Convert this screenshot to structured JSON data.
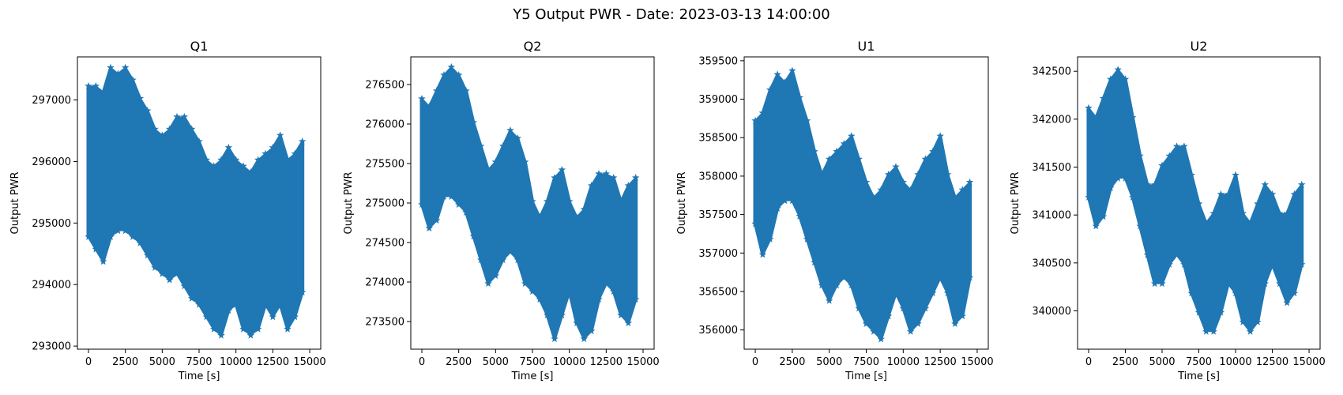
{
  "figure": {
    "suptitle": "Y5 Output PWR - Date: 2023-03-13 14:00:00"
  },
  "colors": {
    "series": "#1f77b4",
    "axes": "#000000",
    "background": "#ffffff"
  },
  "chart_data": [
    {
      "type": "scatter",
      "marker": "star",
      "title": "Q1",
      "xlabel": "Time [s]",
      "ylabel": "Output PWR",
      "xlim": [
        -750,
        15750
      ],
      "ylim": [
        292950,
        297700
      ],
      "xticks": [
        0,
        2500,
        5000,
        7500,
        10000,
        12500,
        15000
      ],
      "yticks": [
        293000,
        294000,
        295000,
        296000,
        297000
      ],
      "grid": false,
      "series": [
        {
          "x": [
            0,
            500,
            1000,
            1500,
            2000,
            2500,
            3000,
            3500,
            4000,
            4500,
            5000,
            5500,
            6000,
            6500,
            7000,
            7500,
            8000,
            8500,
            9000,
            9500,
            10000,
            10500,
            11000,
            11500,
            12000,
            12500,
            13000,
            13500,
            14000,
            14500
          ],
          "ymax": [
            297200,
            297200,
            297100,
            297500,
            297400,
            297500,
            297300,
            297000,
            296800,
            296500,
            296400,
            296500,
            296700,
            296700,
            296500,
            296300,
            296000,
            295900,
            296000,
            296200,
            296000,
            295900,
            295800,
            296000,
            296100,
            296200,
            296400,
            296000,
            296100,
            296300
          ],
          "ymin": [
            294800,
            294600,
            294400,
            294800,
            294900,
            294900,
            294800,
            294700,
            294500,
            294300,
            294200,
            294100,
            294200,
            294000,
            293800,
            293700,
            293500,
            293300,
            293200,
            293600,
            293700,
            293300,
            293200,
            293300,
            293700,
            293500,
            293700,
            293300,
            293500,
            293900
          ]
        }
      ]
    },
    {
      "type": "scatter",
      "marker": "star",
      "title": "Q2",
      "xlabel": "Time [s]",
      "ylabel": "Output PWR",
      "xlim": [
        -750,
        15750
      ],
      "ylim": [
        273150,
        276850
      ],
      "xticks": [
        0,
        2500,
        5000,
        7500,
        10000,
        12500,
        15000
      ],
      "yticks": [
        273500,
        274000,
        274500,
        275000,
        275500,
        276000,
        276500
      ],
      "grid": false,
      "series": [
        {
          "x": [
            0,
            500,
            1000,
            1500,
            2000,
            2500,
            3000,
            3500,
            4000,
            4500,
            5000,
            5500,
            6000,
            6500,
            7000,
            7500,
            8000,
            8500,
            9000,
            9500,
            10000,
            10500,
            11000,
            11500,
            12000,
            12500,
            13000,
            13500,
            14000,
            14500
          ],
          "ymax": [
            276300,
            276200,
            276400,
            276600,
            276700,
            276600,
            276400,
            276000,
            275700,
            275400,
            275500,
            275700,
            275900,
            275800,
            275500,
            275000,
            274800,
            275000,
            275300,
            275400,
            275000,
            274800,
            274900,
            275200,
            275350,
            275350,
            275300,
            275000,
            275200,
            275300
          ],
          "ymin": [
            275000,
            274700,
            274800,
            275100,
            275100,
            275000,
            274900,
            274600,
            274300,
            274000,
            274100,
            274300,
            274400,
            274300,
            274000,
            273900,
            273800,
            273600,
            273300,
            273600,
            273900,
            273500,
            273300,
            273400,
            273800,
            274000,
            273900,
            273600,
            273500,
            273800
          ]
        }
      ]
    },
    {
      "type": "scatter",
      "marker": "star",
      "title": "U1",
      "xlabel": "Time [s]",
      "ylabel": "Output PWR",
      "xlim": [
        -750,
        15750
      ],
      "ylim": [
        355750,
        359550
      ],
      "xticks": [
        0,
        2500,
        5000,
        7500,
        10000,
        12500,
        15000
      ],
      "yticks": [
        356000,
        356500,
        357000,
        357500,
        358000,
        358500,
        359000,
        359500
      ],
      "grid": false,
      "series": [
        {
          "x": [
            0,
            500,
            1000,
            1500,
            2000,
            2500,
            3000,
            3500,
            4000,
            4500,
            5000,
            5500,
            6000,
            6500,
            7000,
            7500,
            8000,
            8500,
            9000,
            9500,
            10000,
            10500,
            11000,
            11500,
            12000,
            12500,
            13000,
            13500,
            14000,
            14500
          ],
          "ymax": [
            358700,
            358800,
            359100,
            359300,
            359200,
            359350,
            359000,
            358700,
            358300,
            358000,
            358200,
            358300,
            358400,
            358500,
            358200,
            357900,
            357700,
            357800,
            358000,
            358100,
            357900,
            357800,
            358000,
            358200,
            358300,
            358500,
            358000,
            357700,
            357800,
            357900
          ],
          "ymin": [
            357400,
            357000,
            357200,
            357600,
            357700,
            357700,
            357500,
            357200,
            356900,
            356600,
            356400,
            356600,
            356700,
            356600,
            356300,
            356100,
            356000,
            355900,
            356200,
            356500,
            356300,
            356000,
            356100,
            356300,
            356500,
            356700,
            356500,
            356100,
            356200,
            356700
          ]
        }
      ]
    },
    {
      "type": "scatter",
      "marker": "star",
      "title": "U2",
      "xlabel": "Time [s]",
      "ylabel": "Output PWR",
      "xlim": [
        -750,
        15750
      ],
      "ylim": [
        339600,
        342650
      ],
      "xticks": [
        0,
        2500,
        5000,
        7500,
        10000,
        12500,
        15000
      ],
      "yticks": [
        340000,
        340500,
        341000,
        341500,
        342000,
        342500
      ],
      "grid": false,
      "series": [
        {
          "x": [
            0,
            500,
            1000,
            1500,
            2000,
            2500,
            3000,
            3500,
            4000,
            4500,
            5000,
            5500,
            6000,
            6500,
            7000,
            7500,
            8000,
            8500,
            9000,
            9500,
            10000,
            10500,
            11000,
            11500,
            12000,
            12500,
            13000,
            13500,
            14000,
            14500
          ],
          "ymax": [
            342100,
            342000,
            342200,
            342400,
            342500,
            342400,
            342000,
            341600,
            341300,
            341300,
            341500,
            341600,
            341700,
            341700,
            341400,
            341100,
            340900,
            341000,
            341200,
            341200,
            341400,
            341000,
            340900,
            341100,
            341300,
            341200,
            341000,
            341000,
            341200,
            341300
          ],
          "ymin": [
            341200,
            340900,
            341000,
            341300,
            341400,
            341400,
            341200,
            340900,
            340600,
            340300,
            340300,
            340500,
            340600,
            340500,
            340200,
            340000,
            339800,
            339800,
            340000,
            340300,
            340200,
            339900,
            339800,
            339900,
            340300,
            340500,
            340300,
            340100,
            340200,
            340500
          ]
        }
      ]
    }
  ]
}
